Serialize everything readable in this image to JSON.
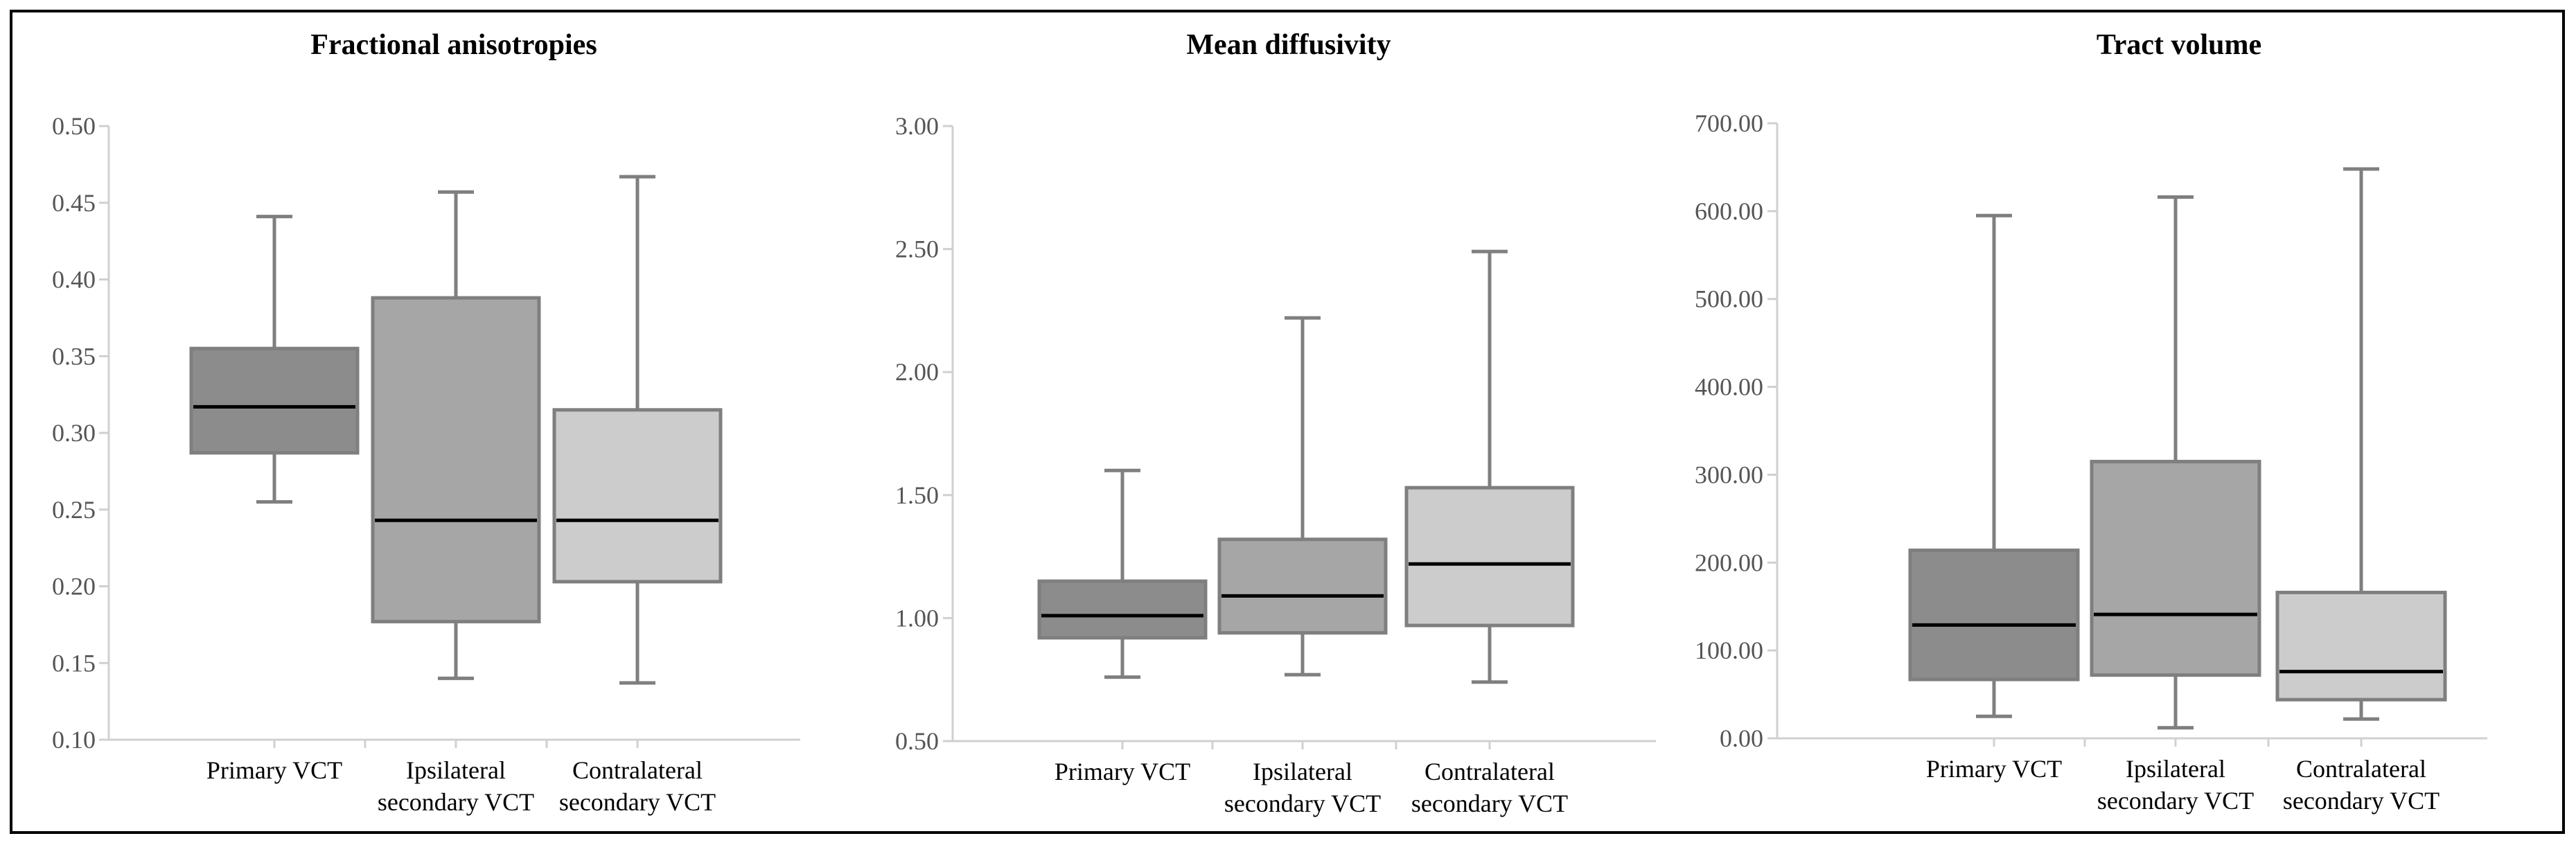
{
  "chart_data": [
    {
      "type": "box",
      "title": "Fractional anisotropies",
      "xlabel": "",
      "ylabel": "",
      "ylim": [
        0.1,
        0.5
      ],
      "yticks": [
        "0.10",
        "0.15",
        "0.20",
        "0.25",
        "0.30",
        "0.35",
        "0.40",
        "0.45",
        "0.50"
      ],
      "grid": false,
      "categories": [
        [
          "Primary VCT"
        ],
        [
          "Ipsilateral",
          "secondary VCT"
        ],
        [
          "Contralateral",
          "secondary VCT"
        ]
      ],
      "boxes": [
        {
          "min": 0.255,
          "q1": 0.287,
          "median": 0.317,
          "q3": 0.355,
          "max": 0.441,
          "color": "#8c8c8c"
        },
        {
          "min": 0.14,
          "q1": 0.177,
          "median": 0.243,
          "q3": 0.388,
          "max": 0.457,
          "color": "#a6a6a6"
        },
        {
          "min": 0.137,
          "q1": 0.203,
          "median": 0.243,
          "q3": 0.315,
          "max": 0.467,
          "color": "#cccccc"
        }
      ]
    },
    {
      "type": "box",
      "title": "Mean diffusivity",
      "xlabel": "",
      "ylabel": "",
      "ylim": [
        0.5,
        3.0
      ],
      "yticks": [
        "0.50",
        "1.00",
        "1.50",
        "2.00",
        "2.50",
        "3.00"
      ],
      "grid": false,
      "categories": [
        [
          "Primary VCT"
        ],
        [
          "Ipsilateral",
          "secondary VCT"
        ],
        [
          "Contralateral",
          "secondary VCT"
        ]
      ],
      "boxes": [
        {
          "min": 0.76,
          "q1": 0.92,
          "median": 1.01,
          "q3": 1.15,
          "max": 1.6,
          "color": "#8c8c8c"
        },
        {
          "min": 0.77,
          "q1": 0.94,
          "median": 1.09,
          "q3": 1.32,
          "max": 2.22,
          "color": "#a6a6a6"
        },
        {
          "min": 0.74,
          "q1": 0.97,
          "median": 1.22,
          "q3": 1.53,
          "max": 2.49,
          "color": "#cccccc"
        }
      ]
    },
    {
      "type": "box",
      "title": "Tract volume",
      "xlabel": "",
      "ylabel": "",
      "ylim": [
        0.0,
        700.0
      ],
      "yticks": [
        "0.00",
        "100.00",
        "200.00",
        "300.00",
        "400.00",
        "500.00",
        "600.00",
        "700.00"
      ],
      "grid": false,
      "categories": [
        [
          "Primary VCT"
        ],
        [
          "Ipsilateral",
          "secondary VCT"
        ],
        [
          "Contralateral",
          "secondary VCT"
        ]
      ],
      "boxes": [
        {
          "min": 25,
          "q1": 67,
          "median": 129,
          "q3": 214,
          "max": 595,
          "color": "#8c8c8c"
        },
        {
          "min": 12,
          "q1": 72,
          "median": 141,
          "q3": 315,
          "max": 616,
          "color": "#a6a6a6"
        },
        {
          "min": 22,
          "q1": 44,
          "median": 76,
          "q3": 166,
          "max": 648,
          "color": "#cccccc"
        }
      ]
    }
  ],
  "colors": {
    "axis": "#d0d0d0",
    "whisker": "#7f7f7f",
    "box_border": "#7f7f7f",
    "median": "#000000",
    "tick_text": "#555555",
    "frame": "#000000"
  }
}
